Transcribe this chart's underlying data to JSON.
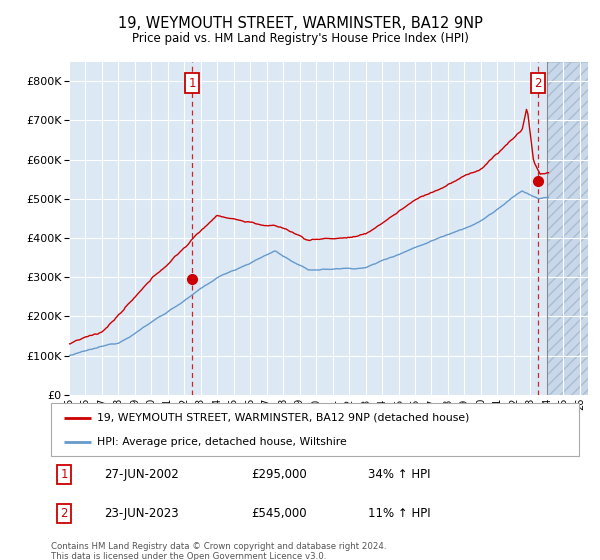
{
  "title": "19, WEYMOUTH STREET, WARMINSTER, BA12 9NP",
  "subtitle": "Price paid vs. HM Land Registry's House Price Index (HPI)",
  "ylim": [
    0,
    850000
  ],
  "yticks": [
    0,
    100000,
    200000,
    300000,
    400000,
    500000,
    600000,
    700000,
    800000
  ],
  "ytick_labels": [
    "£0",
    "£100K",
    "£200K",
    "£300K",
    "£400K",
    "£500K",
    "£600K",
    "£700K",
    "£800K"
  ],
  "background_color": "#dce9f5",
  "legend_label_red": "19, WEYMOUTH STREET, WARMINSTER, BA12 9NP (detached house)",
  "legend_label_blue": "HPI: Average price, detached house, Wiltshire",
  "red_color": "#cc0000",
  "blue_color": "#6699cc",
  "sale1_date": "27-JUN-2002",
  "sale1_price": "£295,000",
  "sale1_info": "34% ↑ HPI",
  "sale2_date": "23-JUN-2023",
  "sale2_price": "£545,000",
  "sale2_info": "11% ↑ HPI",
  "footer": "Contains HM Land Registry data © Crown copyright and database right 2024.\nThis data is licensed under the Open Government Licence v3.0.",
  "sale1_x": 2002.49,
  "sale1_y": 295000,
  "sale2_x": 2023.47,
  "sale2_y": 545000,
  "vline1_x": 2002.49,
  "vline2_x": 2023.47,
  "hatch_start": 2024.0,
  "xmin": 1995.0,
  "xmax": 2026.5,
  "xticks": [
    1995,
    1996,
    1997,
    1998,
    1999,
    2000,
    2001,
    2002,
    2003,
    2004,
    2005,
    2006,
    2007,
    2008,
    2009,
    2010,
    2011,
    2012,
    2013,
    2014,
    2015,
    2016,
    2017,
    2018,
    2019,
    2020,
    2021,
    2022,
    2023,
    2024,
    2025,
    2026
  ]
}
